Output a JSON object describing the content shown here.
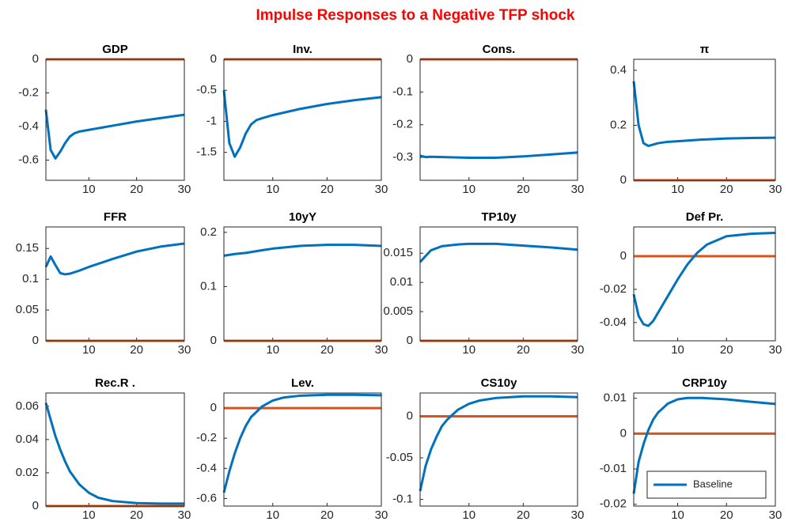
{
  "title": "Impulse Responses to a Negative TFP shock",
  "chart_data": [
    {
      "type": "line",
      "title": "GDP",
      "xlim": [
        1,
        30
      ],
      "xticks": [
        10,
        20,
        30
      ],
      "ylim": [
        -0.72,
        0
      ],
      "yticks": [
        0,
        -0.2,
        -0.4,
        -0.6
      ],
      "reference_line": {
        "value": 0,
        "color": "#d95319"
      },
      "x": [
        1,
        2,
        3,
        4,
        5,
        6,
        7,
        8,
        10,
        15,
        20,
        25,
        30
      ],
      "series": [
        {
          "color": "#0072bd",
          "values": [
            -0.3,
            -0.54,
            -0.59,
            -0.55,
            -0.5,
            -0.46,
            -0.44,
            -0.43,
            -0.42,
            -0.395,
            -0.37,
            -0.35,
            -0.33
          ]
        }
      ]
    },
    {
      "type": "line",
      "title": "Inv.",
      "xlim": [
        1,
        30
      ],
      "xticks": [
        10,
        20,
        30
      ],
      "ylim": [
        -1.95,
        0
      ],
      "yticks": [
        0,
        -0.5,
        -1,
        -1.5
      ],
      "reference_line": {
        "value": 0,
        "color": "#d95319"
      },
      "x": [
        1,
        2,
        3,
        4,
        5,
        6,
        7,
        8,
        10,
        15,
        20,
        25,
        30
      ],
      "series": [
        {
          "color": "#0072bd",
          "values": [
            -0.5,
            -1.35,
            -1.57,
            -1.42,
            -1.2,
            -1.05,
            -0.98,
            -0.95,
            -0.9,
            -0.8,
            -0.72,
            -0.66,
            -0.61
          ]
        }
      ]
    },
    {
      "type": "line",
      "title": "Cons.",
      "xlim": [
        1,
        30
      ],
      "xticks": [
        10,
        20,
        30
      ],
      "ylim": [
        -0.37,
        0
      ],
      "yticks": [
        0,
        -0.1,
        -0.2,
        -0.3
      ],
      "reference_line": {
        "value": 0,
        "color": "#d95319"
      },
      "x": [
        1,
        2,
        3,
        5,
        10,
        15,
        20,
        25,
        30
      ],
      "series": [
        {
          "color": "#0072bd",
          "values": [
            -0.295,
            -0.299,
            -0.298,
            -0.299,
            -0.301,
            -0.301,
            -0.297,
            -0.291,
            -0.285
          ]
        }
      ]
    },
    {
      "type": "line",
      "title": "π",
      "xlim": [
        1,
        30
      ],
      "xticks": [
        10,
        20,
        30
      ],
      "ylim": [
        0,
        0.44
      ],
      "yticks": [
        0,
        0.2,
        0.4
      ],
      "reference_line": {
        "value": 0,
        "color": "#d95319"
      },
      "x": [
        1,
        2,
        3,
        4,
        5,
        6,
        8,
        10,
        15,
        20,
        25,
        30
      ],
      "series": [
        {
          "color": "#0072bd",
          "values": [
            0.36,
            0.2,
            0.135,
            0.125,
            0.13,
            0.135,
            0.14,
            0.142,
            0.148,
            0.152,
            0.154,
            0.155
          ]
        }
      ]
    },
    {
      "type": "line",
      "title": "FFR",
      "xlim": [
        1,
        30
      ],
      "xticks": [
        10,
        20,
        30
      ],
      "ylim": [
        0,
        0.185
      ],
      "yticks": [
        0,
        0.05,
        0.1,
        0.15
      ],
      "reference_line": {
        "value": 0,
        "color": "#d95319"
      },
      "x": [
        1,
        2,
        3,
        4,
        5,
        6,
        8,
        10,
        15,
        20,
        25,
        30
      ],
      "series": [
        {
          "color": "#0072bd",
          "values": [
            0.12,
            0.137,
            0.123,
            0.11,
            0.108,
            0.109,
            0.114,
            0.12,
            0.133,
            0.145,
            0.153,
            0.158
          ]
        }
      ]
    },
    {
      "type": "line",
      "title": "10yY",
      "xlim": [
        1,
        30
      ],
      "xticks": [
        10,
        20,
        30
      ],
      "ylim": [
        0,
        0.21
      ],
      "yticks": [
        0,
        0.1,
        0.2
      ],
      "reference_line": {
        "value": 0,
        "color": "#d95319"
      },
      "x": [
        1,
        3,
        5,
        8,
        10,
        15,
        20,
        25,
        30
      ],
      "series": [
        {
          "color": "#0072bd",
          "values": [
            0.157,
            0.16,
            0.162,
            0.167,
            0.17,
            0.175,
            0.177,
            0.177,
            0.175
          ]
        }
      ]
    },
    {
      "type": "line",
      "title": "TP10y",
      "xlim": [
        1,
        30
      ],
      "xticks": [
        10,
        20,
        30
      ],
      "ylim": [
        0,
        0.0195
      ],
      "yticks": [
        0,
        0.005,
        0.01,
        0.015
      ],
      "reference_line": {
        "value": 0,
        "color": "#d95319"
      },
      "x": [
        1,
        3,
        5,
        8,
        10,
        15,
        20,
        25,
        30
      ],
      "series": [
        {
          "color": "#0072bd",
          "values": [
            0.0135,
            0.0155,
            0.0162,
            0.0165,
            0.0166,
            0.0166,
            0.0163,
            0.016,
            0.0156
          ]
        }
      ]
    },
    {
      "type": "line",
      "title": "Def Pr.",
      "xlim": [
        1,
        30
      ],
      "xticks": [
        10,
        20,
        30
      ],
      "ylim": [
        -0.051,
        0.0176
      ],
      "yticks": [
        0,
        -0.02,
        -0.04
      ],
      "reference_line": {
        "value": 0,
        "color": "#d95319"
      },
      "x": [
        1,
        2,
        3,
        4,
        5,
        6,
        8,
        10,
        12,
        14,
        16,
        20,
        25,
        30
      ],
      "series": [
        {
          "color": "#0072bd",
          "values": [
            -0.023,
            -0.036,
            -0.041,
            -0.042,
            -0.039,
            -0.034,
            -0.024,
            -0.014,
            -0.005,
            0.002,
            0.007,
            0.012,
            0.0135,
            0.014
          ]
        }
      ]
    },
    {
      "type": "line",
      "title": "Rec.R .",
      "xlim": [
        1,
        30
      ],
      "xticks": [
        10,
        20,
        30
      ],
      "ylim": [
        0,
        0.068
      ],
      "yticks": [
        0,
        0.02,
        0.04,
        0.06
      ],
      "reference_line": {
        "value": 0,
        "color": "#d95319"
      },
      "x": [
        1,
        2,
        3,
        4,
        5,
        6,
        8,
        10,
        12,
        15,
        20,
        25,
        30
      ],
      "series": [
        {
          "color": "#0072bd",
          "values": [
            0.062,
            0.052,
            0.042,
            0.034,
            0.027,
            0.021,
            0.013,
            0.008,
            0.005,
            0.003,
            0.0018,
            0.0015,
            0.0015
          ]
        }
      ]
    },
    {
      "type": "line",
      "title": "Lev.",
      "xlim": [
        1,
        30
      ],
      "xticks": [
        10,
        20,
        30
      ],
      "ylim": [
        -0.65,
        0.1
      ],
      "yticks": [
        0,
        -0.2,
        -0.4,
        -0.6
      ],
      "reference_line": {
        "value": 0,
        "color": "#d95319"
      },
      "x": [
        1,
        2,
        3,
        4,
        5,
        6,
        8,
        10,
        12,
        15,
        20,
        25,
        30
      ],
      "series": [
        {
          "color": "#0072bd",
          "values": [
            -0.56,
            -0.42,
            -0.3,
            -0.2,
            -0.12,
            -0.06,
            0.01,
            0.05,
            0.07,
            0.082,
            0.088,
            0.088,
            0.085
          ]
        }
      ]
    },
    {
      "type": "line",
      "title": "CS10y",
      "xlim": [
        1,
        30
      ],
      "xticks": [
        10,
        20,
        30
      ],
      "ylim": [
        -0.108,
        0.028
      ],
      "yticks": [
        0,
        -0.05,
        -0.1
      ],
      "reference_line": {
        "value": 0,
        "color": "#d95319"
      },
      "x": [
        1,
        2,
        3,
        4,
        5,
        6,
        8,
        10,
        12,
        15,
        20,
        25,
        30
      ],
      "series": [
        {
          "color": "#0072bd",
          "values": [
            -0.09,
            -0.06,
            -0.04,
            -0.025,
            -0.012,
            -0.004,
            0.008,
            0.015,
            0.019,
            0.022,
            0.024,
            0.024,
            0.023
          ]
        }
      ]
    },
    {
      "type": "line",
      "title": "CRP10y",
      "xlim": [
        1,
        30
      ],
      "xticks": [
        10,
        20,
        30
      ],
      "ylim": [
        -0.0205,
        0.0115
      ],
      "yticks": [
        0.01,
        0,
        -0.01,
        -0.02
      ],
      "reference_line": {
        "value": 0,
        "color": "#d95319"
      },
      "legend": "lower right",
      "x": [
        1,
        2,
        3,
        4,
        5,
        6,
        8,
        10,
        12,
        15,
        20,
        25,
        30
      ],
      "series": [
        {
          "name": "Baseline",
          "color": "#0072bd",
          "values": [
            -0.017,
            -0.008,
            -0.003,
            0.001,
            0.004,
            0.006,
            0.0085,
            0.0097,
            0.0101,
            0.0101,
            0.0097,
            0.009,
            0.0084
          ]
        }
      ]
    }
  ]
}
